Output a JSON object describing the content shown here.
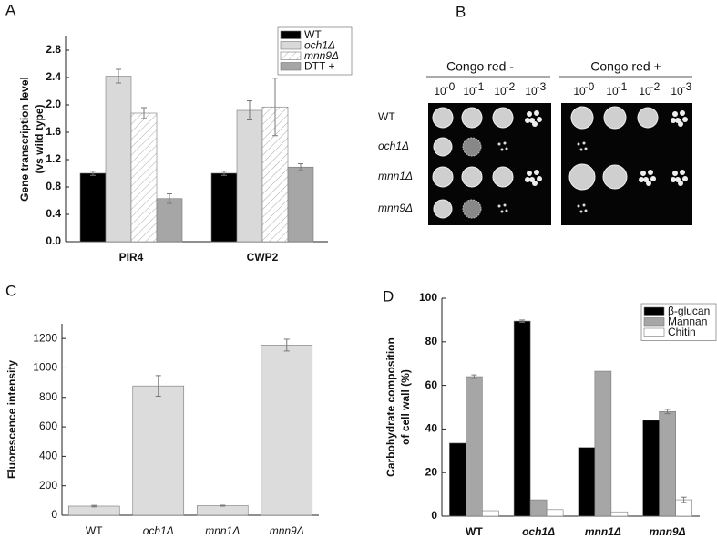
{
  "chart_data": [
    {
      "type": "bar",
      "panel": "A",
      "ylabel": [
        "Gene transcription level",
        "(vs wild type)"
      ],
      "categories": [
        "PIR4",
        "CWP2"
      ],
      "series": [
        {
          "name": "WT",
          "color": "#000000",
          "values": [
            1.0,
            1.0
          ],
          "errors": [
            0.03,
            0.03
          ]
        },
        {
          "name": "och1Δ",
          "color": "#d9d9d9",
          "values": [
            2.42,
            1.92
          ],
          "errors": [
            0.1,
            0.14
          ]
        },
        {
          "name": "mnn9Δ",
          "color": "#ffffff",
          "pattern": "hatch",
          "values": [
            1.88,
            1.97
          ],
          "errors": [
            0.08,
            0.42
          ]
        },
        {
          "name": "DTT +",
          "color": "#a6a6a6",
          "values": [
            0.63,
            1.09
          ],
          "errors": [
            0.07,
            0.05
          ]
        }
      ],
      "ylim": [
        0,
        3.0
      ],
      "yticks": [
        {
          "value": 0,
          "label": "0.0"
        },
        0.4,
        0.8,
        1.2,
        1.6,
        {
          "value": 2,
          "label": "2.0"
        },
        2.4,
        2.8
      ],
      "legend": "upper right"
    },
    {
      "type": "bar",
      "panel": "C",
      "ylabel": [
        "Fluorescence intensity"
      ],
      "categories": [
        "WT",
        "och1Δ",
        "mnn1Δ",
        "mnn9Δ"
      ],
      "values": [
        62,
        878,
        65,
        1155
      ],
      "errors": [
        5,
        70,
        3,
        40
      ],
      "color": "#dcdcdc",
      "ylim": [
        0,
        1300
      ],
      "yticks": [
        0,
        200,
        400,
        600,
        800,
        1000,
        1200
      ]
    },
    {
      "type": "bar",
      "panel": "D",
      "ylabel": [
        "Carbohydrate composition",
        "of cell wall (%)"
      ],
      "categories": [
        "WT",
        "och1Δ",
        "mnn1Δ",
        "mnn9Δ"
      ],
      "series": [
        {
          "name": "β-glucan",
          "color": "#000000",
          "values": [
            33.5,
            89.5,
            31.5,
            44
          ],
          "errors": [
            null,
            0.5,
            null,
            null
          ]
        },
        {
          "name": "Mannan",
          "color": "#a6a6a6",
          "values": [
            64,
            7.5,
            66.5,
            48
          ],
          "errors": [
            0.8,
            null,
            null,
            1
          ]
        },
        {
          "name": "Chitin",
          "color": "#ffffff",
          "values": [
            2.5,
            3,
            2,
            7.5
          ],
          "errors": [
            null,
            null,
            null,
            1.2
          ]
        }
      ],
      "ylim": [
        0,
        100
      ],
      "yticks": [
        0,
        20,
        40,
        60,
        80,
        100
      ],
      "legend": "upper right"
    }
  ],
  "panel_b": {
    "panel": "B",
    "conditions": [
      "Congo red -",
      "Congo red +"
    ],
    "dilutions": [
      {
        "base": "10",
        "exponent": "-0"
      },
      {
        "base": "10",
        "exponent": "-1"
      },
      {
        "base": "10",
        "exponent": "-2"
      },
      {
        "base": "10",
        "exponent": "-3"
      }
    ],
    "strains": [
      "WT",
      "och1Δ",
      "mnn1Δ",
      "mnn9Δ"
    ]
  }
}
